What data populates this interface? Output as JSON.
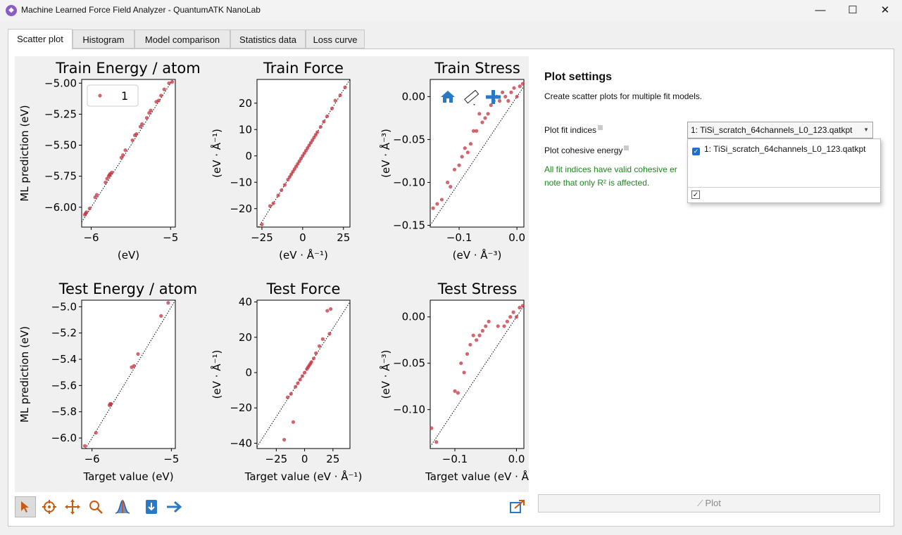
{
  "window": {
    "title": "Machine Learned Force Field Analyzer - QuantumATK NanoLab",
    "minimize": "—",
    "maximize": "☐",
    "close": "✕"
  },
  "tabs": [
    "Scatter plot",
    "Histogram",
    "Model comparison",
    "Statistics data",
    "Loss curve"
  ],
  "settings": {
    "title": "Plot settings",
    "description": "Create scatter plots for multiple fit models.",
    "fit_indices_label": "Plot fit indices",
    "fit_indices_value": "1: TiSi_scratch_64channels_L0_123.qatkpt",
    "cohesive_label": "Plot cohesive energy",
    "dropdown_option": "1: TiSi_scratch_64channels_L0_123.qatkpt",
    "status_line1": "All fit indices have valid cohesive er",
    "status_line2": "note that only R² is affected.",
    "plot_button": "Plot"
  },
  "chart_data": [
    {
      "type": "scatter",
      "title": "Train Energy / atom",
      "ylabel": "ML prediction (eV)",
      "xlabel": "(eV)",
      "legend": "1",
      "legend_position": "top-left",
      "xlim": [
        -6.12,
        -4.94
      ],
      "ylim": [
        -6.16,
        -4.97
      ],
      "xticks": [
        -6,
        -5
      ],
      "xtick_labels": [
        "−6",
        "−5"
      ],
      "yticks": [
        -6.0,
        -5.75,
        -5.5,
        -5.25,
        -5.0
      ],
      "ytick_labels": [
        "−6.00",
        "−5.75",
        "−5.50",
        "−5.25",
        "−5.00"
      ],
      "points": [
        [
          -6.08,
          -6.06
        ],
        [
          -6.07,
          -6.05
        ],
        [
          -6.06,
          -6.04
        ],
        [
          -6.02,
          -6.01
        ],
        [
          -5.95,
          -5.92
        ],
        [
          -5.93,
          -5.9
        ],
        [
          -5.82,
          -5.8
        ],
        [
          -5.8,
          -5.77
        ],
        [
          -5.78,
          -5.75
        ],
        [
          -5.77,
          -5.74
        ],
        [
          -5.76,
          -5.73
        ],
        [
          -5.74,
          -5.72
        ],
        [
          -5.62,
          -5.6
        ],
        [
          -5.6,
          -5.58
        ],
        [
          -5.57,
          -5.54
        ],
        [
          -5.45,
          -5.42
        ],
        [
          -5.43,
          -5.41
        ],
        [
          -5.38,
          -5.35
        ],
        [
          -5.3,
          -5.28
        ],
        [
          -5.27,
          -5.24
        ],
        [
          -5.25,
          -5.22
        ],
        [
          -5.18,
          -5.15
        ],
        [
          -5.12,
          -5.1
        ],
        [
          -5.08,
          -5.05
        ],
        [
          -5.02,
          -5.0
        ],
        [
          -4.98,
          -4.99
        ],
        [
          -5.15,
          -5.14
        ],
        [
          -5.36,
          -5.33
        ],
        [
          -5.48,
          -5.46
        ]
      ]
    },
    {
      "type": "scatter",
      "title": "Train Force",
      "ylabel": "(eV · Å⁻¹)",
      "xlabel": "(eV · Å⁻¹)",
      "xlim": [
        -28,
        29
      ],
      "ylim": [
        -27,
        29
      ],
      "xticks": [
        -25,
        0,
        25
      ],
      "xtick_labels": [
        "−25",
        "0",
        "25"
      ],
      "yticks": [
        -20,
        -10,
        0,
        10,
        20
      ],
      "ytick_labels": [
        "−20",
        "−10",
        "0",
        "10",
        "20"
      ],
      "points": [
        [
          -25,
          -26
        ],
        [
          -20,
          -19
        ],
        [
          -18,
          -18
        ],
        [
          -15,
          -15
        ],
        [
          -13,
          -13
        ],
        [
          -11,
          -11
        ],
        [
          -9,
          -9
        ],
        [
          -8,
          -8
        ],
        [
          -7,
          -7
        ],
        [
          -6,
          -6
        ],
        [
          -5,
          -5
        ],
        [
          -4,
          -4
        ],
        [
          -3,
          -3
        ],
        [
          -2,
          -2
        ],
        [
          -1,
          -1
        ],
        [
          0,
          0
        ],
        [
          1,
          1
        ],
        [
          2,
          2
        ],
        [
          3,
          3
        ],
        [
          4,
          4
        ],
        [
          5,
          5
        ],
        [
          6,
          6
        ],
        [
          7,
          7
        ],
        [
          8,
          8
        ],
        [
          9,
          9
        ],
        [
          11,
          11
        ],
        [
          13,
          13
        ],
        [
          15,
          15
        ],
        [
          18,
          18
        ],
        [
          20,
          21
        ],
        [
          23,
          23
        ],
        [
          26,
          26
        ]
      ]
    },
    {
      "type": "scatter",
      "title": "Train Stress",
      "ylabel": "(eV · Å⁻³)",
      "xlabel": "(eV · Å⁻³)",
      "xlim": [
        -0.15,
        0.012
      ],
      "ylim": [
        -0.152,
        0.02
      ],
      "xticks": [
        -0.1,
        0.0
      ],
      "xtick_labels": [
        "−0.1",
        "0.0"
      ],
      "yticks": [
        -0.15,
        -0.1,
        -0.05,
        0.0
      ],
      "ytick_labels": [
        "−0.15",
        "−0.10",
        "−0.05",
        "0.00"
      ],
      "points": [
        [
          -0.145,
          -0.13
        ],
        [
          -0.138,
          -0.125
        ],
        [
          -0.13,
          -0.12
        ],
        [
          -0.12,
          -0.1
        ],
        [
          -0.115,
          -0.105
        ],
        [
          -0.108,
          -0.085
        ],
        [
          -0.1,
          -0.08
        ],
        [
          -0.095,
          -0.07
        ],
        [
          -0.09,
          -0.06
        ],
        [
          -0.085,
          -0.065
        ],
        [
          -0.08,
          -0.055
        ],
        [
          -0.075,
          -0.04
        ],
        [
          -0.07,
          -0.04
        ],
        [
          -0.065,
          -0.02
        ],
        [
          -0.06,
          -0.03
        ],
        [
          -0.055,
          -0.025
        ],
        [
          -0.05,
          -0.02
        ],
        [
          -0.045,
          -0.01
        ],
        [
          -0.04,
          -0.005
        ],
        [
          -0.035,
          0.0
        ],
        [
          -0.03,
          -0.005
        ],
        [
          -0.025,
          0.005
        ],
        [
          -0.02,
          0.0
        ],
        [
          -0.015,
          -0.005
        ],
        [
          -0.01,
          0.005
        ],
        [
          -0.005,
          0.01
        ],
        [
          0.0,
          0.0
        ],
        [
          0.005,
          0.012
        ],
        [
          0.01,
          0.015
        ]
      ]
    },
    {
      "type": "scatter",
      "title": "Test Energy / atom",
      "ylabel": "ML prediction (eV)",
      "xlabel": "Target value (eV)",
      "xlim": [
        -6.13,
        -4.95
      ],
      "ylim": [
        -6.08,
        -4.95
      ],
      "xticks": [
        -6,
        -5
      ],
      "xtick_labels": [
        "−6",
        "−5"
      ],
      "yticks": [
        -6.0,
        -5.8,
        -5.6,
        -5.4,
        -5.2,
        -5.0
      ],
      "ytick_labels": [
        "−6.0",
        "−5.8",
        "−5.6",
        "−5.4",
        "−5.2",
        "−5.0"
      ],
      "points": [
        [
          -6.09,
          -6.06
        ],
        [
          -5.95,
          -5.96
        ],
        [
          -5.78,
          -5.75
        ],
        [
          -5.77,
          -5.74
        ],
        [
          -5.76,
          -5.74
        ],
        [
          -5.5,
          -5.46
        ],
        [
          -5.47,
          -5.45
        ],
        [
          -5.42,
          -5.36
        ],
        [
          -5.13,
          -5.07
        ],
        [
          -5.04,
          -4.97
        ]
      ]
    },
    {
      "type": "scatter",
      "title": "Test Force",
      "ylabel": "(eV · Å⁻¹)",
      "xlabel": "Target value (eV · Å⁻¹)",
      "xlim": [
        -42,
        40
      ],
      "ylim": [
        -43,
        41
      ],
      "xticks": [
        -25,
        0,
        25
      ],
      "xtick_labels": [
        "−25",
        "0",
        "25"
      ],
      "yticks": [
        -40,
        -20,
        0,
        20,
        40
      ],
      "ytick_labels": [
        "−40",
        "−20",
        "0",
        "20",
        "40"
      ],
      "points": [
        [
          -18,
          -38
        ],
        [
          -10,
          -28
        ],
        [
          -15,
          -14
        ],
        [
          -12,
          -12
        ],
        [
          -8,
          -8
        ],
        [
          -6,
          -6
        ],
        [
          -4,
          -4
        ],
        [
          -2,
          -2
        ],
        [
          0,
          0
        ],
        [
          2,
          2
        ],
        [
          3,
          3
        ],
        [
          4,
          4
        ],
        [
          5,
          5
        ],
        [
          6,
          6
        ],
        [
          8,
          8
        ],
        [
          10,
          11
        ],
        [
          13,
          15
        ],
        [
          16,
          19
        ],
        [
          22,
          22
        ],
        [
          20,
          35
        ],
        [
          23,
          36
        ]
      ]
    },
    {
      "type": "scatter",
      "title": "Test Stress",
      "ylabel": "(eV · Å⁻³)",
      "xlabel": "Target value (eV · Å",
      "xlim": [
        -0.14,
        0.012
      ],
      "ylim": [
        -0.142,
        0.018
      ],
      "xticks": [
        -0.1,
        0.0
      ],
      "xtick_labels": [
        "−0.1",
        "0.0"
      ],
      "yticks": [
        -0.1,
        -0.05,
        0.0
      ],
      "ytick_labels": [
        "−0.10",
        "−0.05",
        "0.00"
      ],
      "points": [
        [
          -0.138,
          -0.12
        ],
        [
          -0.13,
          -0.135
        ],
        [
          -0.1,
          -0.08
        ],
        [
          -0.095,
          -0.082
        ],
        [
          -0.09,
          -0.05
        ],
        [
          -0.085,
          -0.06
        ],
        [
          -0.08,
          -0.04
        ],
        [
          -0.075,
          -0.03
        ],
        [
          -0.07,
          -0.02
        ],
        [
          -0.065,
          -0.025
        ],
        [
          -0.06,
          -0.02
        ],
        [
          -0.055,
          -0.015
        ],
        [
          -0.05,
          -0.01
        ],
        [
          -0.045,
          -0.005
        ],
        [
          -0.03,
          -0.01
        ],
        [
          -0.02,
          -0.01
        ],
        [
          -0.015,
          -0.005
        ],
        [
          -0.01,
          0.0
        ],
        [
          -0.005,
          0.005
        ],
        [
          0.0,
          0.0
        ],
        [
          0.005,
          0.01
        ],
        [
          0.01,
          0.012
        ]
      ]
    }
  ]
}
